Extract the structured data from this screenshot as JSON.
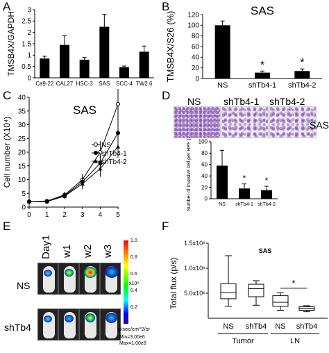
{
  "panels": {
    "A": "A",
    "B": "B",
    "C": "C",
    "D": "D",
    "E": "E",
    "F": "F"
  },
  "chart_data": [
    {
      "id": "A",
      "type": "bar",
      "ylabel": "TMSB4X/GAPDH",
      "categories": [
        "Ca9-22",
        "CAL27",
        "HSC-3",
        "SAS",
        "SCC-4",
        "TW2.6"
      ],
      "values": [
        0.85,
        1.45,
        0.8,
        2.25,
        0.47,
        1.15
      ],
      "errors": [
        0.1,
        0.4,
        0.1,
        0.55,
        0.05,
        0.25
      ],
      "ylim": [
        0,
        3
      ],
      "yticks": [
        "0",
        "0.5",
        "1",
        "1.5",
        "2",
        "2.5",
        "3"
      ]
    },
    {
      "id": "B",
      "type": "bar",
      "title": "SAS",
      "ylabel": "TMSB4X/S26 (%)",
      "categories": [
        "NS",
        "shTb4-1",
        "shTb4-2"
      ],
      "values": [
        100,
        11,
        14
      ],
      "errors": [
        8,
        3,
        4
      ],
      "sig": [
        "",
        "*",
        "*"
      ],
      "ylim": [
        0,
        120
      ],
      "yticks": [
        "0",
        "20",
        "40",
        "60",
        "80",
        "100",
        "120"
      ]
    },
    {
      "id": "C",
      "type": "line",
      "title": "SAS",
      "xlabel": "Day",
      "ylabel": "Cell number (X10⁴)",
      "x": [
        0,
        1,
        2,
        3,
        4,
        5
      ],
      "xticks": [
        "0",
        "1",
        "2",
        "3",
        "4",
        "5"
      ],
      "ylim": [
        0,
        40
      ],
      "yticks": [
        "0",
        "5",
        "10",
        "15",
        "20",
        "25",
        "30",
        "35",
        "40"
      ],
      "series": [
        {
          "name": "NS",
          "values": [
            2,
            2.2,
            4.5,
            10,
            20,
            37.5
          ],
          "errors": [
            0.5,
            0.5,
            1,
            2,
            4,
            9
          ],
          "marker": "open-circle"
        },
        {
          "name": "shTb4-1",
          "values": [
            2,
            2,
            4.2,
            9.2,
            16,
            27
          ],
          "errors": [
            0.5,
            0.5,
            1,
            2,
            3,
            5
          ],
          "marker": "filled-circle"
        },
        {
          "name": "shTb4-2",
          "values": [
            2,
            2,
            4,
            8.5,
            14,
            22
          ],
          "errors": [
            0.5,
            0.5,
            1,
            2,
            3,
            4
          ],
          "marker": "filled-triangle"
        }
      ],
      "legend_position": "middle-right"
    },
    {
      "id": "D",
      "type": "bar",
      "ylabel": "Number of invasive cell per HPF (20x)",
      "categories": [
        "NS",
        "shTb4-1",
        "shTb4-2"
      ],
      "values": [
        58,
        18,
        15
      ],
      "errors": [
        27,
        8,
        7
      ],
      "sig": [
        "",
        "*",
        "*"
      ],
      "ylim": [
        0,
        100
      ],
      "yticks": [
        "0",
        "20",
        "40",
        "60",
        "80",
        "100"
      ]
    },
    {
      "id": "F",
      "type": "box",
      "title": "SAS",
      "ylabel": "Total flux (p/s)",
      "group_labels": [
        "Tumor",
        "LN"
      ],
      "categories": [
        "NS",
        "shTb4",
        "NS",
        "shTb4"
      ],
      "boxes": [
        {
          "min": 240000000.0,
          "q1": 390000000.0,
          "median": 510000000.0,
          "q3": 690000000.0,
          "max": 1250000000.0
        },
        {
          "min": 260000000.0,
          "q1": 430000000.0,
          "median": 590000000.0,
          "q3": 680000000.0,
          "max": 750000000.0
        },
        {
          "min": 160000000.0,
          "q1": 240000000.0,
          "median": 320000000.0,
          "q3": 450000000.0,
          "max": 510000000.0
        },
        {
          "min": 130000000.0,
          "q1": 160000000.0,
          "median": 200000000.0,
          "q3": 230000000.0,
          "max": 250000000.0
        }
      ],
      "ylim": [
        0,
        1500000000.0
      ],
      "yticks": [
        "5.0x10⁸",
        "1.0x10⁹",
        "1.5x10⁹"
      ],
      "sig_label": "*"
    }
  ],
  "D_images": {
    "labels": [
      "NS",
      "shTb4-1",
      "shTb4-2"
    ],
    "cell_line": "SAS"
  },
  "E_images": {
    "columns": [
      "Day1",
      "w1",
      "w2",
      "w3"
    ],
    "rows": [
      "NS",
      "shTb4"
    ],
    "colorbar_ticks": [
      "1.0",
      "0.8",
      "0.6",
      "0.4",
      "0.2"
    ],
    "colorbar_exp": "x10⁸",
    "colorbar_units": "p/sec/cm^2/sr",
    "min_label": "Min=3.00e6",
    "max_label": "Max=1.00e8"
  }
}
